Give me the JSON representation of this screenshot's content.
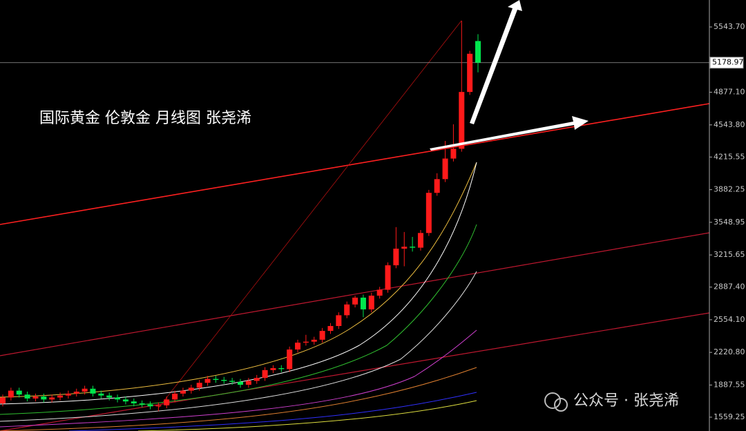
{
  "chart_data": {
    "type": "candlestick",
    "title": "国际黄金 伦敦金  月线图 张尧浠",
    "watermark": "公众号 · 张尧浠",
    "open": [
      1700,
      1760,
      1830,
      1790,
      1750,
      1770,
      1740,
      1760,
      1780,
      1800,
      1820,
      1850,
      1800,
      1780,
      1760,
      1740,
      1720,
      1700,
      1690,
      1670,
      1680,
      1740,
      1800,
      1830,
      1860,
      1910,
      1950,
      1940,
      1930,
      1920,
      1890,
      1930,
      1960,
      2040,
      2060,
      2050,
      2250,
      2320,
      2330,
      2350,
      2440,
      2490,
      2600,
      2710,
      2780,
      2660,
      2800,
      2860,
      3110,
      3280,
      3300,
      3290,
      3440,
      3850,
      3990,
      4200,
      4300,
      4880,
      5400
    ],
    "high": [
      1790,
      1860,
      1860,
      1820,
      1800,
      1800,
      1790,
      1810,
      1830,
      1850,
      1880,
      1880,
      1830,
      1810,
      1790,
      1770,
      1750,
      1730,
      1720,
      1710,
      1770,
      1830,
      1860,
      1890,
      1940,
      1980,
      1980,
      1970,
      1960,
      1950,
      1960,
      1990,
      2070,
      2090,
      2090,
      2280,
      2350,
      2400,
      2380,
      2470,
      2520,
      2630,
      2740,
      2800,
      2810,
      2830,
      2890,
      3140,
      3500,
      3450,
      3400,
      3470,
      3880,
      4050,
      4380,
      4550,
      5607,
      5300,
      5470
    ],
    "low": [
      1670,
      1730,
      1760,
      1720,
      1720,
      1710,
      1710,
      1730,
      1750,
      1770,
      1790,
      1770,
      1750,
      1730,
      1710,
      1690,
      1670,
      1660,
      1640,
      1620,
      1650,
      1710,
      1770,
      1800,
      1830,
      1880,
      1910,
      1900,
      1890,
      1860,
      1860,
      1900,
      1930,
      2010,
      2020,
      2020,
      2220,
      2290,
      2300,
      2320,
      2410,
      2460,
      2570,
      2680,
      2580,
      2630,
      2770,
      2830,
      3080,
      3100,
      3250,
      3260,
      3410,
      3820,
      3960,
      4170,
      4270,
      4850,
      5080
    ],
    "close": [
      1760,
      1830,
      1790,
      1750,
      1770,
      1740,
      1760,
      1780,
      1800,
      1820,
      1850,
      1800,
      1780,
      1760,
      1740,
      1720,
      1700,
      1690,
      1670,
      1680,
      1740,
      1800,
      1830,
      1860,
      1910,
      1950,
      1940,
      1930,
      1920,
      1890,
      1930,
      1960,
      2040,
      2060,
      2050,
      2250,
      2320,
      2330,
      2350,
      2440,
      2490,
      2600,
      2710,
      2780,
      2660,
      2800,
      2860,
      3110,
      3280,
      3300,
      3290,
      3440,
      3850,
      3990,
      4200,
      4300,
      4880,
      5270,
      5179
    ],
    "up_color": "#ff1a1a",
    "down_color": "#00e64d",
    "ylim": [
      1418,
      5819
    ],
    "yticks": [
      {
        "value": 5543.7,
        "label": "5543.70"
      },
      {
        "value": 4877.1,
        "label": "4877.10"
      },
      {
        "value": 4543.8,
        "label": "4543.80"
      },
      {
        "value": 4215.55,
        "label": "4215.55"
      },
      {
        "value": 3882.25,
        "label": "3882.25"
      },
      {
        "value": 3548.95,
        "label": "3548.95"
      },
      {
        "value": 3215.65,
        "label": "3215.65"
      },
      {
        "value": 2887.4,
        "label": "2887.40"
      },
      {
        "value": 2554.1,
        "label": "2554.10"
      },
      {
        "value": 2220.8,
        "label": "2220.80"
      },
      {
        "value": 1887.55,
        "label": "1887.55"
      },
      {
        "value": 1559.25,
        "label": "1559.25"
      }
    ],
    "current_price": {
      "value": 5178.97,
      "label": "5178.97"
    }
  }
}
